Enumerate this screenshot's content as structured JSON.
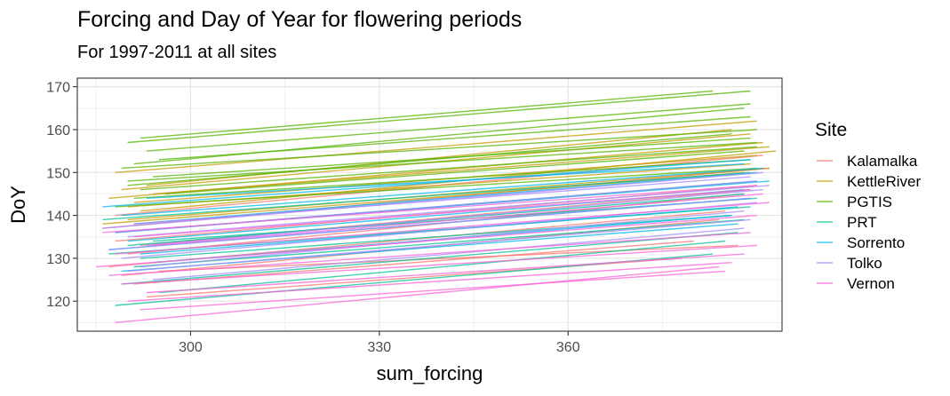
{
  "chart_data": {
    "type": "line",
    "title": "Forcing and Day of Year for flowering periods",
    "subtitle": "For 1997-2011 at all sites",
    "xlabel": "sum_forcing",
    "ylabel": "DoY",
    "xlim": [
      282,
      394
    ],
    "ylim": [
      113,
      172
    ],
    "xticks": [
      300,
      330,
      360
    ],
    "yticks": [
      120,
      130,
      140,
      150,
      160,
      170
    ],
    "grid": true,
    "legend": {
      "title": "Site",
      "position": "right"
    },
    "series": [
      {
        "name": "Kalamalka",
        "color": "#F8766D",
        "lines": [
          [
            [
              286,
              137
            ],
            [
              392,
              151
            ]
          ],
          [
            [
              288,
              134
            ],
            [
              390,
              147
            ]
          ],
          [
            [
              290,
              131
            ],
            [
              388,
              145
            ]
          ],
          [
            [
              287,
              128
            ],
            [
              385,
              141
            ]
          ],
          [
            [
              289,
              126
            ],
            [
              384,
              139
            ]
          ],
          [
            [
              291,
              124
            ],
            [
              380,
              134
            ]
          ],
          [
            [
              293,
              121
            ],
            [
              378,
              130
            ]
          ],
          [
            [
              288,
              140
            ],
            [
              391,
              154
            ]
          ],
          [
            [
              292,
              133
            ],
            [
              389,
              146
            ]
          ],
          [
            [
              295,
              127
            ],
            [
              387,
              133
            ]
          ]
        ]
      },
      {
        "name": "KettleRiver",
        "color": "#C49A00",
        "lines": [
          [
            [
              289,
              146
            ],
            [
              389,
              159
            ]
          ],
          [
            [
              287,
              144
            ],
            [
              391,
              157
            ]
          ],
          [
            [
              292,
              141
            ],
            [
              393,
              155
            ]
          ],
          [
            [
              288,
              150
            ],
            [
              390,
              162
            ]
          ],
          [
            [
              290,
              139
            ],
            [
              392,
              151
            ]
          ],
          [
            [
              291,
              143
            ],
            [
              390,
              154
            ]
          ],
          [
            [
              293,
              147
            ],
            [
              386,
              160
            ]
          ],
          [
            [
              286,
              138
            ],
            [
              388,
              150
            ]
          ],
          [
            [
              294,
              145
            ],
            [
              392,
              156
            ]
          ],
          [
            [
              290,
              142
            ],
            [
              389,
              152
            ]
          ]
        ]
      },
      {
        "name": "PGTIS",
        "color": "#53B400",
        "lines": [
          [
            [
              290,
              157
            ],
            [
              389,
              169
            ]
          ],
          [
            [
              292,
              158
            ],
            [
              383,
              169
            ]
          ],
          [
            [
              291,
              152
            ],
            [
              388,
              165
            ]
          ],
          [
            [
              293,
              155
            ],
            [
              389,
              166
            ]
          ],
          [
            [
              295,
              153
            ],
            [
              389,
              163
            ]
          ],
          [
            [
              289,
              151
            ],
            [
              390,
              160
            ]
          ],
          [
            [
              294,
              149
            ],
            [
              389,
              158
            ]
          ],
          [
            [
              290,
              148
            ],
            [
              390,
              157
            ]
          ],
          [
            [
              292,
              146
            ],
            [
              390,
              156
            ]
          ],
          [
            [
              296,
              145
            ],
            [
              388,
              155
            ]
          ],
          [
            [
              291,
              144
            ],
            [
              389,
              153
            ]
          ],
          [
            [
              288,
              142
            ],
            [
              390,
              151
            ]
          ],
          [
            [
              290,
              147
            ],
            [
              386,
              159
            ]
          ]
        ]
      },
      {
        "name": "PRT",
        "color": "#00C094",
        "lines": [
          [
            [
              286,
              139
            ],
            [
              389,
              150
            ]
          ],
          [
            [
              288,
              136
            ],
            [
              390,
              148
            ]
          ],
          [
            [
              290,
              133
            ],
            [
              388,
              145
            ]
          ],
          [
            [
              287,
              131
            ],
            [
              389,
              142
            ]
          ],
          [
            [
              292,
              130
            ],
            [
              386,
              140
            ]
          ],
          [
            [
              289,
              124
            ],
            [
              387,
              136
            ]
          ],
          [
            [
              295,
              122
            ],
            [
              385,
              134
            ]
          ],
          [
            [
              288,
              119
            ],
            [
              383,
              131
            ]
          ],
          [
            [
              294,
              134
            ],
            [
              390,
              144
            ]
          ],
          [
            [
              291,
              128
            ],
            [
              388,
              139
            ]
          ]
        ]
      },
      {
        "name": "Sorrento",
        "color": "#00B6EB",
        "lines": [
          [
            [
              286,
              142
            ],
            [
              389,
              153
            ]
          ],
          [
            [
              289,
              140
            ],
            [
              391,
              151
            ]
          ],
          [
            [
              291,
              138
            ],
            [
              390,
              150
            ]
          ],
          [
            [
              288,
              136
            ],
            [
              392,
              148
            ]
          ],
          [
            [
              290,
              134
            ],
            [
              388,
              146
            ]
          ],
          [
            [
              287,
              132
            ],
            [
              389,
              144
            ]
          ],
          [
            [
              292,
              131
            ],
            [
              387,
              142
            ]
          ],
          [
            [
              294,
              129
            ],
            [
              386,
              140
            ]
          ],
          [
            [
              289,
              127
            ],
            [
              387,
              138
            ]
          ],
          [
            [
              293,
              144
            ],
            [
              388,
              152
            ]
          ]
        ]
      },
      {
        "name": "Tolko",
        "color": "#A58AFF",
        "lines": [
          [
            [
              291,
              138
            ],
            [
              389,
              149
            ]
          ],
          [
            [
              288,
              136
            ],
            [
              390,
              148
            ]
          ],
          [
            [
              290,
              135
            ],
            [
              392,
              147
            ]
          ],
          [
            [
              293,
              133
            ],
            [
              391,
              146
            ]
          ],
          [
            [
              287,
              132
            ],
            [
              389,
              144
            ]
          ],
          [
            [
              289,
              130
            ],
            [
              390,
              143
            ]
          ],
          [
            [
              292,
              128
            ],
            [
              388,
              141
            ]
          ],
          [
            [
              290,
              127
            ],
            [
              389,
              139
            ]
          ],
          [
            [
              294,
              125
            ],
            [
              388,
              137
            ]
          ],
          [
            [
              286,
              137
            ],
            [
              391,
              150
            ]
          ]
        ]
      },
      {
        "name": "Vernon",
        "color": "#FB61D7",
        "lines": [
          [
            [
              285,
              128
            ],
            [
              390,
              140
            ]
          ],
          [
            [
              288,
              131
            ],
            [
              392,
              143
            ]
          ],
          [
            [
              291,
              135
            ],
            [
              389,
              146
            ]
          ],
          [
            [
              287,
              126
            ],
            [
              389,
              136
            ]
          ],
          [
            [
              289,
              124
            ],
            [
              390,
              133
            ]
          ],
          [
            [
              293,
              122
            ],
            [
              388,
              131
            ]
          ],
          [
            [
              290,
              120
            ],
            [
              386,
              129
            ]
          ],
          [
            [
              288,
              115
            ],
            [
              384,
              128
            ]
          ],
          [
            [
              292,
              118
            ],
            [
              385,
              127
            ]
          ],
          [
            [
              286,
              136
            ],
            [
              390,
              147
            ]
          ],
          [
            [
              294,
              133
            ],
            [
              391,
              145
            ]
          ]
        ]
      }
    ]
  }
}
